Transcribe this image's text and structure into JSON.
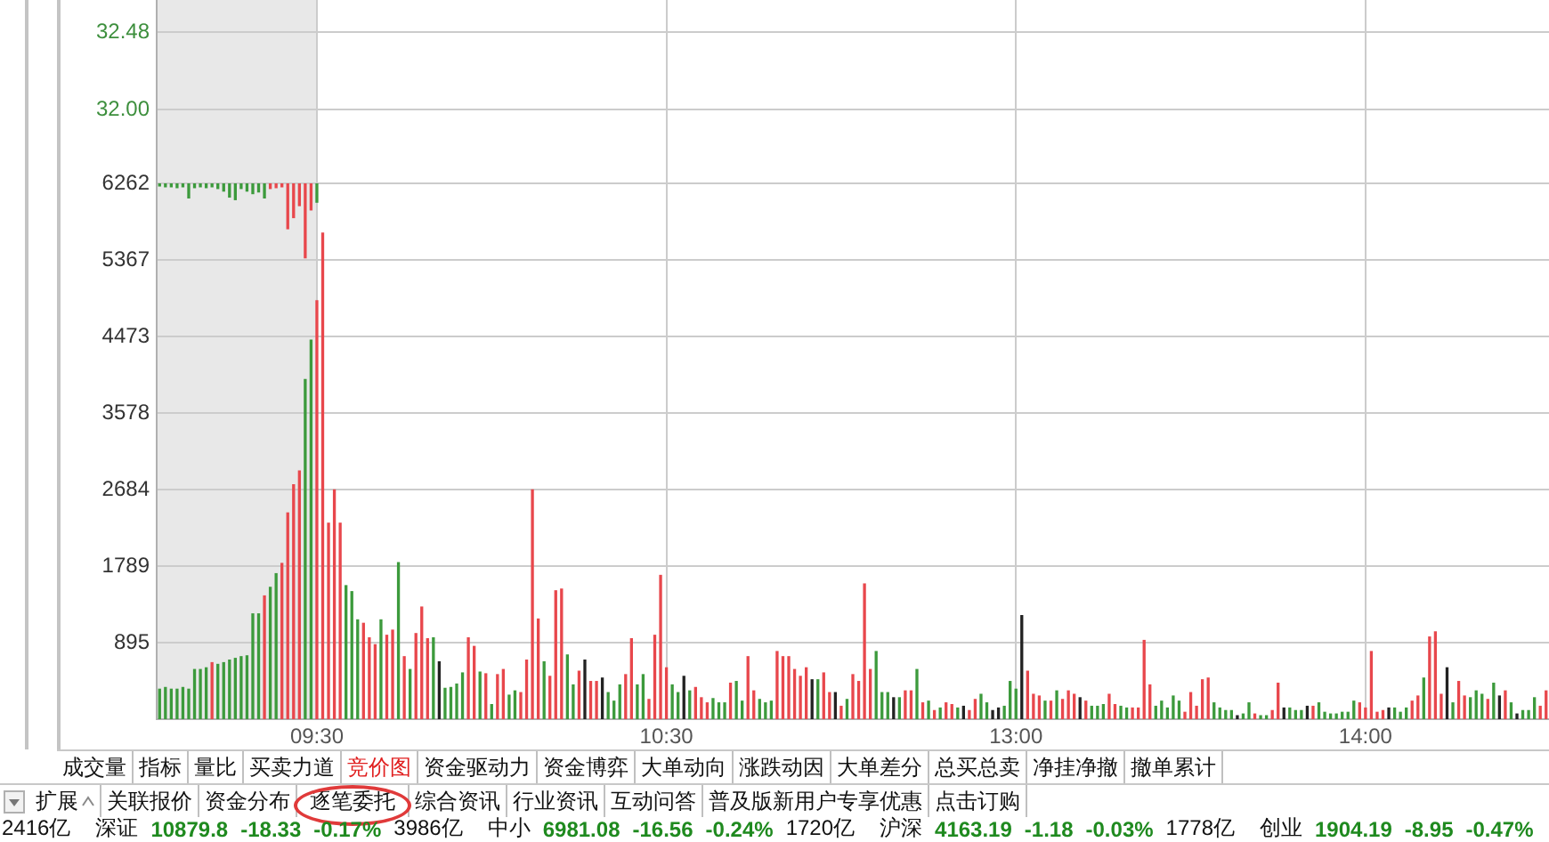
{
  "chart_data": [
    {
      "type": "line",
      "categories": [
        null,
        null,
        null,
        null,
        null,
        null,
        null,
        null,
        null,
        null,
        null,
        null,
        null,
        null,
        null,
        null,
        null,
        null,
        null,
        null,
        null,
        null,
        null,
        null,
        null,
        null,
        null,
        null,
        null,
        null,
        null,
        null,
        null,
        null,
        null,
        null,
        null,
        null,
        null,
        null,
        null,
        null,
        null,
        null,
        null,
        null,
        null,
        null,
        null,
        null,
        null,
        null,
        null,
        null,
        null,
        null,
        null,
        null,
        null,
        null,
        null,
        null,
        null,
        null,
        null,
        null,
        null,
        null,
        null,
        null,
        null,
        null,
        null,
        null,
        null,
        null,
        null,
        null,
        null,
        null,
        null,
        null,
        null,
        null,
        null,
        null,
        null,
        null,
        null,
        null,
        null,
        null,
        null,
        null,
        null,
        null,
        null,
        null,
        null,
        null,
        null,
        null,
        null,
        null,
        null,
        null,
        null,
        null,
        null,
        null,
        null,
        null,
        null,
        null,
        null,
        null,
        null,
        null,
        null,
        null,
        null,
        null,
        null,
        null,
        null,
        null,
        null,
        null,
        null,
        null,
        null,
        null,
        null,
        null,
        null,
        null,
        null,
        null,
        null,
        null,
        null,
        null,
        null,
        null,
        null,
        null,
        null,
        null,
        null,
        null,
        null,
        null,
        null,
        null,
        null,
        null,
        null,
        null,
        null,
        null,
        null,
        null,
        null,
        null,
        null,
        null,
        null,
        null,
        null,
        null,
        null,
        null,
        null,
        null,
        null,
        null,
        null,
        null,
        null,
        null,
        null,
        null,
        null,
        null,
        null,
        null,
        null,
        null,
        null,
        null,
        null,
        null,
        null,
        null,
        null,
        null,
        null,
        null,
        null,
        null,
        null,
        null,
        null,
        null,
        null,
        null,
        null,
        null,
        null,
        null,
        null,
        null,
        null,
        null,
        null,
        null,
        null,
        null,
        null,
        null,
        null,
        null,
        null,
        null,
        null,
        null,
        null,
        null,
        null,
        null,
        null,
        null,
        null,
        null,
        null,
        null,
        null,
        null,
        null
      ],
      "values": [
        null,
        null,
        null,
        null,
        null,
        null,
        null,
        null,
        null,
        null,
        null,
        null,
        null,
        null,
        null,
        null,
        null,
        null,
        null,
        null,
        null,
        null,
        null,
        null,
        null,
        null,
        null,
        null,
        null,
        null,
        null,
        null,
        null,
        null,
        null,
        null,
        null,
        null,
        null,
        null,
        null,
        null,
        null,
        null,
        null,
        null,
        null,
        null,
        null,
        null,
        null,
        null,
        null,
        null,
        null,
        null,
        null,
        null,
        null,
        null,
        null,
        null,
        null,
        null,
        null,
        null,
        null,
        null,
        null,
        null,
        null,
        null,
        null,
        null,
        null,
        null,
        null,
        null,
        null,
        null,
        null,
        null,
        null,
        null,
        null,
        null,
        null,
        null,
        null,
        null,
        null,
        null,
        null,
        null,
        null,
        null,
        null,
        null,
        null,
        null,
        null,
        null,
        null,
        null,
        null,
        null,
        null,
        null,
        null,
        null,
        null,
        null,
        null,
        null,
        null,
        null,
        null,
        null,
        null,
        null,
        null,
        null,
        null,
        null,
        null,
        null,
        null,
        null,
        null,
        null,
        null,
        null,
        null,
        null,
        null,
        null,
        null,
        null,
        null,
        null,
        null,
        null,
        null,
        null,
        null,
        null,
        null,
        null,
        null,
        null,
        null,
        null,
        null,
        null,
        null,
        null,
        null,
        null,
        null,
        null,
        null,
        null,
        null,
        null,
        null,
        null,
        null,
        null,
        null,
        null,
        null,
        null,
        null,
        null,
        null,
        null,
        null,
        null,
        null,
        null,
        null,
        null,
        null,
        null,
        null,
        null,
        null,
        null,
        null,
        null,
        null,
        null,
        null,
        null,
        null,
        null,
        null,
        null,
        null,
        null,
        null,
        null,
        null,
        null,
        null,
        null,
        null,
        null,
        null,
        null,
        null,
        null,
        null,
        null,
        null,
        null,
        null,
        null,
        null,
        null,
        null,
        null,
        null,
        null,
        null,
        null,
        null,
        null,
        null,
        null,
        null,
        null,
        null,
        null,
        null,
        null,
        null,
        null,
        null
      ],
      "ylim": [
        31.54,
        32.68
      ],
      "yticks": [
        {
          "value": 32,
          "label": "32.00"
        },
        32.48
      ],
      "grid": true,
      "tick_labels": "y"
    },
    {
      "type": "bar",
      "categories": [
        null,
        null,
        null,
        null,
        null,
        null,
        null,
        null,
        null,
        null,
        null,
        null,
        null,
        null,
        null,
        null,
        null,
        null,
        null,
        null,
        null,
        null,
        null,
        null,
        null,
        null,
        null,
        "09:30",
        null,
        null,
        null,
        null,
        null,
        null,
        null,
        null,
        null,
        null,
        null,
        null,
        null,
        null,
        null,
        null,
        null,
        null,
        null,
        null,
        null,
        null,
        null,
        null,
        null,
        null,
        null,
        null,
        null,
        null,
        null,
        null,
        null,
        null,
        null,
        null,
        null,
        null,
        null,
        null,
        null,
        null,
        null,
        null,
        null,
        null,
        null,
        null,
        null,
        null,
        null,
        null,
        null,
        null,
        null,
        null,
        null,
        null,
        null,
        "10:30",
        null,
        null,
        null,
        null,
        null,
        null,
        null,
        null,
        null,
        null,
        null,
        null,
        null,
        null,
        null,
        null,
        null,
        null,
        null,
        null,
        null,
        null,
        null,
        null,
        null,
        null,
        null,
        null,
        null,
        null,
        null,
        null,
        null,
        null,
        null,
        null,
        null,
        null,
        null,
        null,
        null,
        null,
        null,
        null,
        null,
        null,
        null,
        null,
        null,
        null,
        null,
        null,
        null,
        null,
        null,
        null,
        null,
        null,
        null,
        "13:00",
        null,
        null,
        null,
        null,
        null,
        null,
        null,
        null,
        null,
        null,
        null,
        null,
        null,
        null,
        null,
        null,
        null,
        null,
        null,
        null,
        null,
        null,
        null,
        null,
        null,
        null,
        null,
        null,
        null,
        null,
        null,
        null,
        null,
        null,
        null,
        null,
        null,
        null,
        null,
        null,
        null,
        null,
        null,
        null,
        null,
        null,
        null,
        null,
        null,
        null,
        null,
        null,
        null,
        null,
        null,
        null,
        null,
        null,
        null,
        "14:00",
        null,
        null,
        null,
        null,
        null,
        null,
        null,
        null,
        null,
        null,
        null,
        null,
        null,
        null,
        null,
        null,
        null,
        null,
        null,
        null,
        null,
        null,
        null,
        null,
        null,
        null,
        null,
        null,
        null,
        null,
        null
      ],
      "series": [
        {
          "values": [
            350,
            370,
            350,
            350,
            370,
            350,
            580,
            580,
            600,
            660,
            640,
            660,
            690,
            710,
            730,
            740,
            1230,
            1230,
            1440,
            1540,
            1700,
            1820,
            2410,
            2740,
            2900,
            3970,
            4430,
            4890,
            5680,
            2290,
            2680,
            2290,
            1560,
            1490,
            1160,
            1120,
            950,
            870,
            1160,
            980,
            1040,
            1830,
            730,
            580,
            1000,
            1310,
            940,
            950,
            670,
            360,
            370,
            410,
            540,
            950,
            850,
            550,
            530,
            170,
            520,
            580,
            280,
            330,
            310,
            690,
            2680,
            1170,
            670,
            500,
            1500,
            1520,
            750,
            400,
            560,
            690,
            440,
            440,
            480,
            310,
            210,
            400,
            520,
            940,
            400,
            520,
            230,
            980,
            1680,
            600,
            400,
            310,
            500,
            330,
            370,
            250,
            190,
            240,
            190,
            190,
            420,
            440,
            210,
            730,
            330,
            230,
            190,
            210,
            790,
            730,
            730,
            580,
            500,
            600,
            460,
            460,
            540,
            310,
            310,
            150,
            230,
            520,
            440,
            1580,
            580,
            790,
            310,
            310,
            250,
            250,
            330,
            330,
            580,
            190,
            210,
            100,
            130,
            190,
            170,
            130,
            150,
            100,
            230,
            290,
            190,
            100,
            130,
            150,
            440,
            350,
            1210,
            560,
            290,
            270,
            210,
            210,
            330,
            230,
            330,
            290,
            250,
            210,
            150,
            150,
            170,
            290,
            170,
            150,
            130,
            130,
            130,
            920,
            400,
            150,
            210,
            130,
            270,
            210,
            80,
            310,
            150,
            460,
            480,
            190,
            130,
            100,
            100,
            40,
            60,
            190,
            60,
            40,
            40,
            100,
            420,
            130,
            130,
            100,
            100,
            150,
            150,
            190,
            80,
            60,
            60,
            80,
            80,
            210,
            190,
            130,
            790,
            80,
            100,
            130,
            130,
            80,
            130,
            210,
            270,
            480,
            960,
            1020,
            290,
            600,
            190,
            440,
            270,
            250,
            330,
            290,
            230,
            420,
            270,
            330,
            190,
            60,
            100,
            100,
            250,
            150,
            330
          ],
          "colors": [
            "#3c9a3c",
            "#3c9a3c",
            "#3c9a3c",
            "#3c9a3c",
            "#3c9a3c",
            "#3c9a3c",
            "#3c9a3c",
            "#3c9a3c",
            "#3c9a3c",
            "#e8474c",
            "#3c9a3c",
            "#3c9a3c",
            "#3c9a3c",
            "#3c9a3c",
            "#3c9a3c",
            "#3c9a3c",
            "#3c9a3c",
            "#3c9a3c",
            "#e8474c",
            "#3c9a3c",
            "#3c9a3c",
            "#e8474c",
            "#e8474c",
            "#e8474c",
            "#e8474c",
            "#3c9a3c",
            "#3c9a3c",
            "#e8474c",
            "#e8474c",
            "#e8474c",
            "#e8474c",
            "#e8474c",
            "#3c9a3c",
            "#3c9a3c",
            "#3c9a3c",
            "#e8474c",
            "#e8474c",
            "#e8474c",
            "#3c9a3c",
            "#e8474c",
            "#e8474c",
            "#3c9a3c",
            "#e8474c",
            "#3c9a3c",
            "#e8474c",
            "#e8474c",
            "#e8474c",
            "#3c9a3c",
            "#222222",
            "#3c9a3c",
            "#3c9a3c",
            "#3c9a3c",
            "#3c9a3c",
            "#e8474c",
            "#e8474c",
            "#3c9a3c",
            "#e8474c",
            "#3c9a3c",
            "#e8474c",
            "#e8474c",
            "#3c9a3c",
            "#3c9a3c",
            "#e8474c",
            "#e8474c",
            "#e8474c",
            "#e8474c",
            "#3c9a3c",
            "#e8474c",
            "#e8474c",
            "#e8474c",
            "#3c9a3c",
            "#3c9a3c",
            "#e8474c",
            "#222222",
            "#e8474c",
            "#e8474c",
            "#222222",
            "#3c9a3c",
            "#3c9a3c",
            "#3c9a3c",
            "#e8474c",
            "#e8474c",
            "#3c9a3c",
            "#3c9a3c",
            "#e8474c",
            "#e8474c",
            "#e8474c",
            "#e8474c",
            "#3c9a3c",
            "#3c9a3c",
            "#222222",
            "#3c9a3c",
            "#e8474c",
            "#e8474c",
            "#e8474c",
            "#3c9a3c",
            "#3c9a3c",
            "#3c9a3c",
            "#e8474c",
            "#3c9a3c",
            "#3c9a3c",
            "#e8474c",
            "#e8474c",
            "#3c9a3c",
            "#3c9a3c",
            "#3c9a3c",
            "#e8474c",
            "#e8474c",
            "#e8474c",
            "#e8474c",
            "#e8474c",
            "#e8474c",
            "#222222",
            "#3c9a3c",
            "#e8474c",
            "#e8474c",
            "#222222",
            "#e8474c",
            "#3c9a3c",
            "#e8474c",
            "#e8474c",
            "#e8474c",
            "#e8474c",
            "#3c9a3c",
            "#3c9a3c",
            "#3c9a3c",
            "#222222",
            "#3c9a3c",
            "#e8474c",
            "#e8474c",
            "#3c9a3c",
            "#e8474c",
            "#3c9a3c",
            "#e8474c",
            "#3c9a3c",
            "#e8474c",
            "#e8474c",
            "#3c9a3c",
            "#222222",
            "#e8474c",
            "#e8474c",
            "#3c9a3c",
            "#3c9a3c",
            "#222222",
            "#222222",
            "#3c9a3c",
            "#3c9a3c",
            "#3c9a3c",
            "#222222",
            "#e8474c",
            "#e8474c",
            "#e8474c",
            "#3c9a3c",
            "#e8474c",
            "#3c9a3c",
            "#e8474c",
            "#e8474c",
            "#e8474c",
            "#222222",
            "#e8474c",
            "#3c9a3c",
            "#3c9a3c",
            "#3c9a3c",
            "#e8474c",
            "#e8474c",
            "#3c9a3c",
            "#3c9a3c",
            "#e8474c",
            "#e8474c",
            "#e8474c",
            "#e8474c",
            "#3c9a3c",
            "#3c9a3c",
            "#3c9a3c",
            "#3c9a3c",
            "#3c9a3c",
            "#e8474c",
            "#e8474c",
            "#e8474c",
            "#e8474c",
            "#e8474c",
            "#3c9a3c",
            "#3c9a3c",
            "#3c9a3c",
            "#3c9a3c",
            "#222222",
            "#3c9a3c",
            "#3c9a3c",
            "#e8474c",
            "#3c9a3c",
            "#3c9a3c",
            "#e8474c",
            "#e8474c",
            "#222222",
            "#3c9a3c",
            "#3c9a3c",
            "#3c9a3c",
            "#222222",
            "#e8474c",
            "#3c9a3c",
            "#3c9a3c",
            "#3c9a3c",
            "#3c9a3c",
            "#3c9a3c",
            "#3c9a3c",
            "#3c9a3c",
            "#e8474c",
            "#e8474c",
            "#e8474c",
            "#e8474c",
            "#e8474c",
            "#222222",
            "#3c9a3c",
            "#3c9a3c",
            "#3c9a3c",
            "#e8474c",
            "#e8474c",
            "#3c9a3c",
            "#e8474c",
            "#e8474c",
            "#e8474c",
            "#222222",
            "#3c9a3c",
            "#e8474c",
            "#e8474c",
            "#3c9a3c",
            "#3c9a3c",
            "#3c9a3c",
            "#e8474c",
            "#3c9a3c",
            "#222222",
            "#e8474c",
            "#3c9a3c",
            "#222222",
            "#3c9a3c",
            "#3c9a3c",
            "#3c9a3c",
            "#e8474c",
            "#e8474c"
          ]
        },
        {
          "values": [
            -30,
            -40,
            -40,
            -50,
            -40,
            -170,
            -50,
            -40,
            -50,
            -40,
            -60,
            -90,
            -160,
            -190,
            -60,
            -90,
            -120,
            -100,
            -170,
            -60,
            -50,
            -40,
            -530,
            -400,
            -260,
            -870,
            -310,
            -220,
            null,
            null,
            null,
            null,
            null,
            null,
            null,
            null,
            null,
            null,
            null,
            null,
            null,
            null,
            null,
            null,
            null,
            null,
            null,
            null,
            null,
            null,
            null,
            null,
            null,
            null,
            null,
            null,
            null,
            null,
            null,
            null,
            null,
            null,
            null,
            null,
            null,
            null,
            null,
            null,
            null,
            null,
            null,
            null,
            null,
            null,
            null,
            null,
            null,
            null,
            null,
            null,
            null,
            null,
            null,
            null,
            null,
            null,
            null,
            null,
            null,
            null,
            null,
            null,
            null,
            null,
            null,
            null,
            null,
            null,
            null,
            null,
            null,
            null,
            null,
            null,
            null,
            null,
            null,
            null,
            null,
            null,
            null,
            null,
            null,
            null,
            null,
            null,
            null,
            null,
            null,
            null,
            null,
            null,
            null,
            null,
            null,
            null,
            null,
            null,
            null,
            null,
            null,
            null,
            null,
            null,
            null,
            null,
            null,
            null,
            null,
            null,
            null,
            null,
            null,
            null,
            null,
            null,
            null,
            null,
            null,
            null,
            null,
            null,
            null,
            null,
            null,
            null,
            null,
            null,
            null,
            null,
            null,
            null,
            null,
            null,
            null,
            null,
            null,
            null,
            null,
            null,
            null,
            null,
            null,
            null,
            null,
            null,
            null,
            null,
            null,
            null,
            null,
            null,
            null,
            null,
            null,
            null,
            null,
            null,
            null,
            null,
            null,
            null,
            null,
            null,
            null,
            null,
            null,
            null,
            null,
            null,
            null,
            null,
            null,
            null,
            null,
            null,
            null,
            null,
            null,
            null,
            null,
            null,
            null,
            null,
            null,
            null,
            null,
            null,
            null,
            null,
            null,
            null,
            null,
            null,
            null,
            null,
            null,
            null,
            null,
            null,
            null,
            null,
            null,
            null,
            null,
            null,
            null,
            null,
            null
          ],
          "base": [
            6262,
            6262,
            6262,
            6262,
            6262,
            6262,
            6262,
            6262,
            6262,
            6262,
            6262,
            6262,
            6262,
            6262,
            6262,
            6262,
            6262,
            6262,
            6262,
            6262,
            6262,
            6262,
            6262,
            6262,
            6262,
            6262,
            6262,
            6262,
            null,
            null,
            null,
            null,
            null,
            null,
            null,
            null,
            null,
            null,
            null,
            null,
            null,
            null,
            null,
            null,
            null,
            null,
            null,
            null,
            null,
            null,
            null,
            null,
            null,
            null,
            null,
            null,
            null,
            null,
            null,
            null,
            null,
            null,
            null,
            null,
            null,
            null,
            null,
            null,
            null,
            null,
            null,
            null,
            null,
            null,
            null,
            null,
            null,
            null,
            null,
            null,
            null,
            null,
            null,
            null,
            null,
            null,
            null,
            null,
            null,
            null,
            null,
            null,
            null,
            null,
            null,
            null,
            null,
            null,
            null,
            null,
            null,
            null,
            null,
            null,
            null,
            null,
            null,
            null,
            null,
            null,
            null,
            null,
            null,
            null,
            null,
            null,
            null,
            null,
            null,
            null,
            null,
            null,
            null,
            null,
            null,
            null,
            null,
            null,
            null,
            null,
            null,
            null,
            null,
            null,
            null,
            null,
            null,
            null,
            null,
            null,
            null,
            null,
            null,
            null,
            null,
            null,
            null,
            null,
            null,
            null,
            null,
            null,
            null,
            null,
            null,
            null,
            null,
            null,
            null,
            null,
            null,
            null,
            null,
            null,
            null,
            null,
            null,
            null,
            null,
            null,
            null,
            null,
            null,
            null,
            null,
            null,
            null,
            null,
            null,
            null,
            null,
            null,
            null,
            null,
            null,
            null,
            null,
            null,
            null,
            null,
            null,
            null,
            null,
            null,
            null,
            null,
            null,
            null,
            null,
            null,
            null,
            null,
            null,
            null,
            null,
            null,
            null,
            null,
            null,
            null,
            null,
            null,
            null,
            null,
            null,
            null,
            null,
            null,
            null,
            null,
            null,
            null,
            null,
            null,
            null,
            null,
            null,
            null,
            null,
            null,
            null,
            null,
            null,
            null,
            null,
            null,
            null,
            null,
            null
          ],
          "colors": [
            "#3c9a3c",
            "#3c9a3c",
            "#3c9a3c",
            "#3c9a3c",
            "#3c9a3c",
            "#3c9a3c",
            "#3c9a3c",
            "#3c9a3c",
            "#3c9a3c",
            "#3c9a3c",
            "#3c9a3c",
            "#3c9a3c",
            "#3c9a3c",
            "#3c9a3c",
            "#3c9a3c",
            "#3c9a3c",
            "#3c9a3c",
            "#3c9a3c",
            "#3c9a3c",
            "#e8474c",
            "#e8474c",
            "#e8474c",
            "#e8474c",
            "#e8474c",
            "#e8474c",
            "#e8474c",
            "#e8474c",
            "#3c9a3c",
            null,
            null,
            null,
            null,
            null,
            null,
            null,
            null,
            null,
            null,
            null,
            null,
            null,
            null,
            null,
            null,
            null,
            null,
            null,
            null,
            null,
            null,
            null,
            null,
            null,
            null,
            null,
            null,
            null,
            null,
            null,
            null,
            null,
            null,
            null,
            null,
            null,
            null,
            null,
            null,
            null,
            null,
            null,
            null,
            null,
            null,
            null,
            null,
            null,
            null,
            null,
            null,
            null,
            null,
            null,
            null,
            null,
            null,
            null,
            null,
            null,
            null,
            null,
            null,
            null,
            null,
            null,
            null,
            null,
            null,
            null,
            null,
            null,
            null,
            null,
            null,
            null,
            null,
            null,
            null,
            null,
            null,
            null,
            null,
            null,
            null,
            null,
            null,
            null,
            null,
            null,
            null,
            null,
            null,
            null,
            null,
            null,
            null,
            null,
            null,
            null,
            null,
            null,
            null,
            null,
            null,
            null,
            null,
            null,
            null,
            null,
            null,
            null,
            null,
            null,
            null,
            null,
            null,
            null,
            null,
            null,
            null,
            null,
            null,
            null,
            null,
            null,
            null,
            null,
            null,
            null,
            null,
            null,
            null,
            null,
            null,
            null,
            null,
            null,
            null,
            null,
            null,
            null,
            null,
            null,
            null,
            null,
            null,
            null,
            null,
            null,
            null,
            null,
            null,
            null,
            null,
            null,
            null,
            null,
            null,
            null,
            null,
            null,
            null,
            null,
            null,
            null,
            null,
            null,
            null,
            null,
            null,
            null,
            null,
            null,
            null,
            null,
            null,
            null,
            null,
            null,
            null,
            null,
            null,
            null,
            null,
            null,
            null,
            null,
            null,
            null,
            null,
            null,
            null,
            null,
            null,
            null,
            null,
            null,
            null,
            null,
            null,
            null,
            null,
            null,
            null,
            null,
            null,
            null,
            null,
            null
          ]
        }
      ],
      "ylim": [
        0,
        6262
      ],
      "yticks": [
        895,
        1789,
        2684,
        3578,
        4473,
        5367,
        6262
      ],
      "grid": true,
      "annotations": [
        "成交量",
        "指标",
        "量比",
        "买卖力道",
        "竞价图",
        "资金驱动力",
        "资金博弈",
        "大单动向",
        "涨跌动因",
        "大单差分",
        "总买总卖",
        "净挂净撤",
        "撤单累计",
        "扩展",
        "关联报价",
        "资金分布",
        "逐笔委托",
        "综合资讯",
        "行业资讯",
        "互动问答",
        "普及版新用户专享优惠",
        "点击订购",
        "2416亿",
        "深证",
        "10879.8",
        "-18.33",
        "-0.17%",
        "3986亿",
        "中小",
        "6981.08",
        "-16.56",
        "-0.24%",
        "1720亿",
        "沪深",
        "4163.19",
        "-1.18",
        "-0.03%",
        "1778亿",
        "创业",
        "1904.19",
        "-8.95",
        "-0.47%"
      ]
    }
  ]
}
